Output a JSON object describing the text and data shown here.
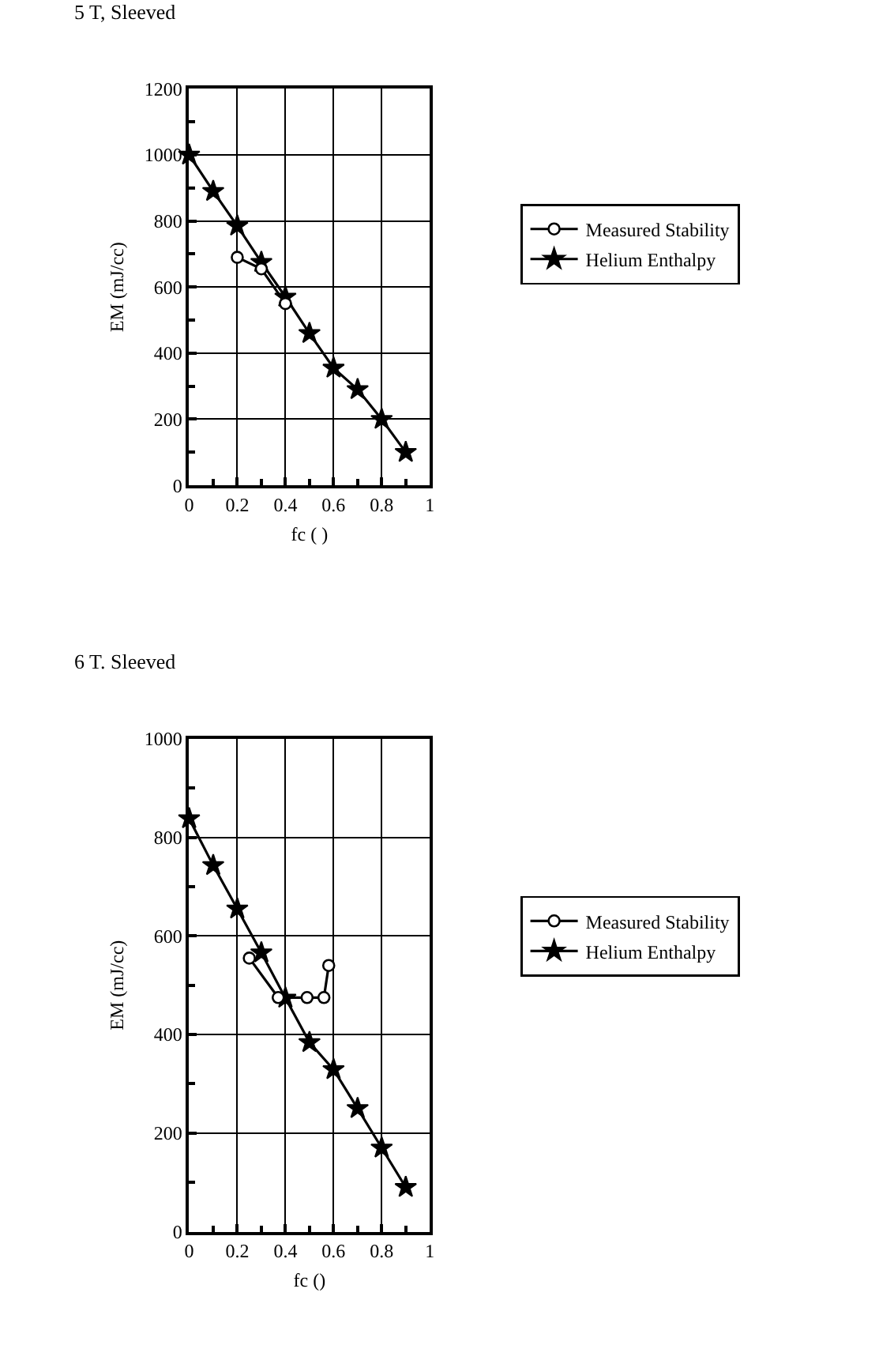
{
  "chart_data": [
    {
      "type": "line",
      "title": "5 T, Sleeved",
      "xlabel": "fc ( )",
      "ylabel": "EM (mJ/cc)",
      "series": [
        {
          "name": "Measured Stability",
          "color": "#000000",
          "marker": "circle",
          "x": [
            0.2,
            0.3,
            0.4
          ],
          "values": [
            690,
            655,
            550
          ]
        },
        {
          "name": "Helium Enthalpy",
          "color": "#000000",
          "marker": "star",
          "x": [
            0,
            0.1,
            0.2,
            0.3,
            0.4,
            0.5,
            0.6,
            0.7,
            0.8,
            0.9
          ],
          "values": [
            1000,
            890,
            785,
            675,
            570,
            460,
            355,
            290,
            200,
            100
          ]
        }
      ],
      "xlim": [
        0,
        1
      ],
      "xticks": [
        0,
        0.2,
        0.4,
        0.6,
        0.8,
        1
      ],
      "ylim": [
        0,
        1200
      ],
      "yticks": [
        0,
        200,
        400,
        600,
        800,
        1000,
        1200
      ],
      "grid": true,
      "legend": "right",
      "line_style": "solid"
    },
    {
      "type": "line",
      "title": "6 T. Sleeved",
      "xlabel": "fc ()",
      "ylabel": "EM (mJ/cc)",
      "series": [
        {
          "name": "Measured Stability",
          "color": "#000000",
          "marker": "circle",
          "x": [
            0.25,
            0.37,
            0.49,
            0.56,
            0.58
          ],
          "values": [
            555,
            475,
            475,
            475,
            540
          ]
        },
        {
          "name": "Helium Enthalpy",
          "color": "#000000",
          "marker": "star",
          "x": [
            0,
            0.1,
            0.2,
            0.3,
            0.4,
            0.5,
            0.6,
            0.7,
            0.8,
            0.9
          ],
          "values": [
            838,
            743,
            655,
            566,
            474,
            384,
            329,
            250,
            170,
            90
          ]
        }
      ],
      "xlim": [
        0,
        1
      ],
      "xticks": [
        0,
        0.2,
        0.4,
        0.6,
        0.8,
        1
      ],
      "ylim": [
        0,
        1000
      ],
      "yticks": [
        0,
        200,
        400,
        600,
        800,
        1000
      ],
      "grid": true,
      "legend": "right",
      "line_style": "solid"
    }
  ]
}
